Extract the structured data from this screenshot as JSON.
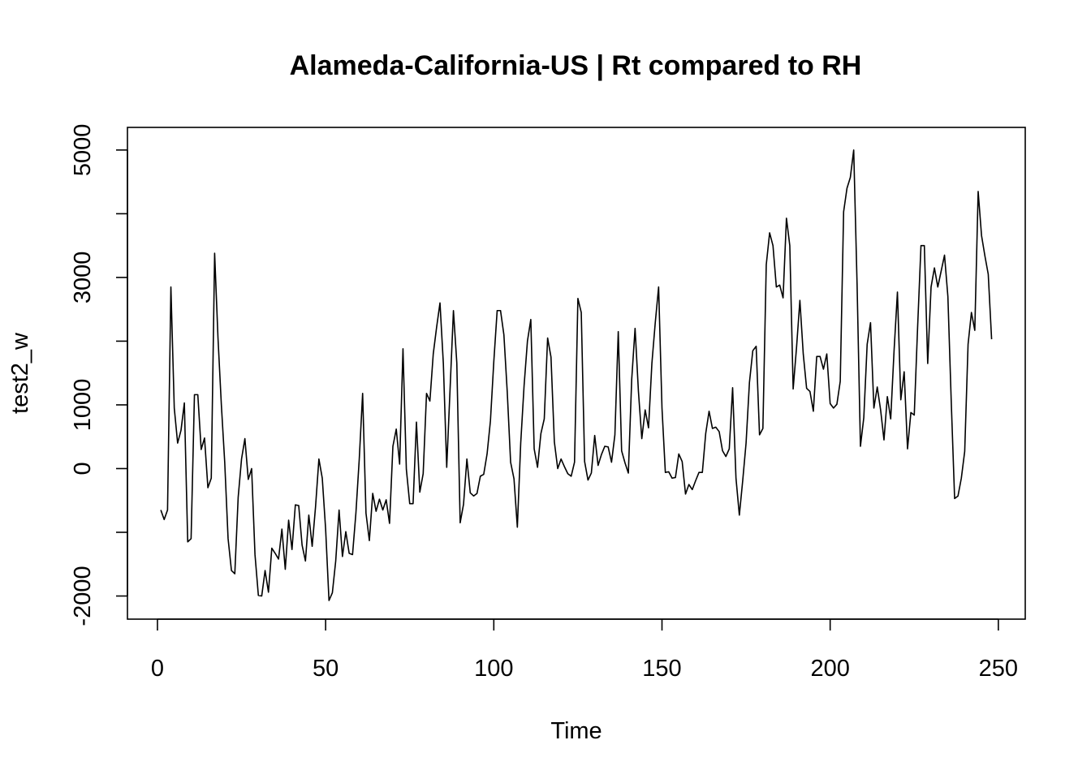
{
  "chart_data": {
    "type": "line",
    "title": "Alameda-California-US | Rt compared to RH",
    "xlabel": "Time",
    "ylabel": "test2_w",
    "xlim": [
      -8.92,
      258
    ],
    "ylim": [
      -2363,
      5355
    ],
    "x_ticks": [
      0,
      50,
      100,
      150,
      200,
      250
    ],
    "x_tick_labels": [
      "0",
      "50",
      "100",
      "150",
      "200",
      "250"
    ],
    "y_ticks": [
      -2000,
      -1000,
      0,
      1000,
      2000,
      3000,
      4000,
      5000
    ],
    "y_tick_labels": [
      "-2000",
      "",
      "0",
      "1000",
      "",
      "3000",
      "",
      "5000"
    ],
    "grid": false,
    "line_color": "#000000",
    "series": [
      {
        "x_start": 1,
        "values": [
          -650,
          -800,
          -650,
          2850,
          950,
          400,
          600,
          1030,
          -1150,
          -1100,
          1160,
          1160,
          300,
          480,
          -300,
          -150,
          3380,
          2050,
          1000,
          100,
          -1100,
          -1600,
          -1650,
          -450,
          150,
          470,
          -170,
          0,
          -1350,
          -1990,
          -2000,
          -1600,
          -1940,
          -1250,
          -1330,
          -1420,
          -950,
          -1580,
          -810,
          -1270,
          -570,
          -580,
          -1200,
          -1450,
          -730,
          -1220,
          -600,
          150,
          -150,
          -950,
          -2070,
          -1950,
          -1450,
          -650,
          -1380,
          -990,
          -1330,
          -1350,
          -700,
          150,
          1180,
          -700,
          -1130,
          -390,
          -670,
          -480,
          -650,
          -490,
          -860,
          350,
          620,
          70,
          1880,
          -10,
          -550,
          -550,
          730,
          -370,
          -80,
          1180,
          1060,
          1800,
          2220,
          2600,
          1650,
          20,
          1250,
          2480,
          1660,
          -850,
          -560,
          150,
          -380,
          -430,
          -390,
          -120,
          -90,
          230,
          750,
          1680,
          2480,
          2480,
          2100,
          1200,
          100,
          -160,
          -920,
          400,
          1300,
          2000,
          2340,
          310,
          20,
          550,
          780,
          2050,
          1750,
          420,
          0,
          150,
          30,
          -80,
          -120,
          100,
          2670,
          2450,
          110,
          -180,
          -70,
          520,
          50,
          220,
          350,
          340,
          100,
          530,
          2150,
          280,
          90,
          -70,
          1400,
          2200,
          1210,
          470,
          920,
          640,
          1650,
          2290,
          2850,
          950,
          -60,
          -50,
          -150,
          -140,
          230,
          110,
          -400,
          -250,
          -330,
          -190,
          -60,
          -60,
          550,
          900,
          630,
          650,
          580,
          280,
          190,
          310,
          1270,
          -150,
          -730,
          -190,
          400,
          1350,
          1850,
          1920,
          530,
          630,
          3200,
          3700,
          3500,
          2850,
          2880,
          2680,
          3930,
          3500,
          1250,
          1900,
          2640,
          1800,
          1260,
          1210,
          900,
          1760,
          1760,
          1560,
          1800,
          1020,
          950,
          1010,
          1370,
          4030,
          4400,
          4570,
          5000,
          2900,
          350,
          800,
          1950,
          2290,
          950,
          1280,
          920,
          450,
          1130,
          780,
          1850,
          2770,
          1080,
          1520,
          310,
          880,
          840,
          2220,
          3500,
          3500,
          1650,
          2850,
          3150,
          2850,
          3100,
          3350,
          2700,
          1050,
          -470,
          -430,
          -150,
          270,
          1950,
          2450,
          2170,
          4350,
          3660,
          3340,
          3050,
          2030
        ]
      }
    ]
  }
}
